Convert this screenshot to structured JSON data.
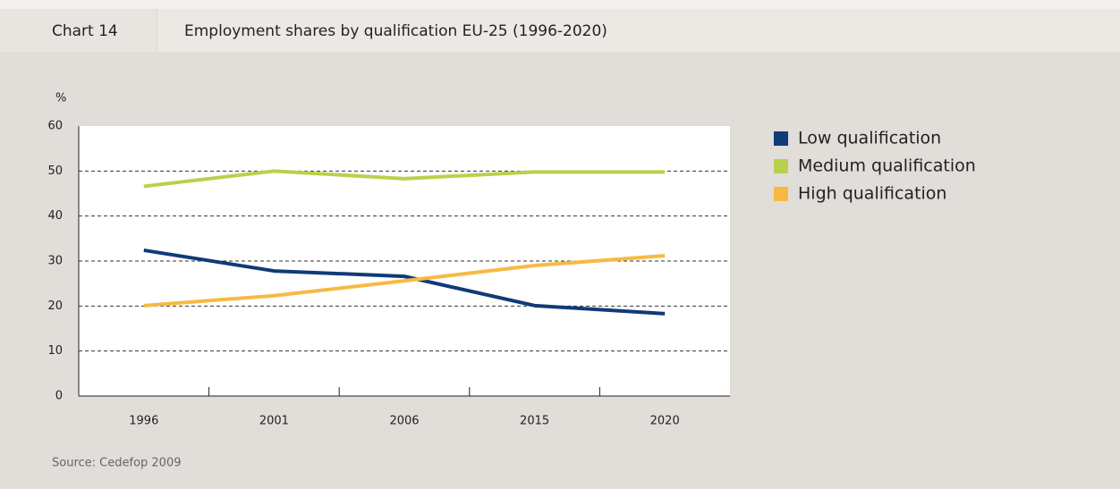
{
  "chart_data": {
    "type": "line",
    "label": "Chart 14",
    "title": "Employment shares by qualification EU-25 (1996-2020)",
    "ylabel": "%",
    "source": "Source: Cedefop 2009",
    "categories": [
      "1996",
      "2001",
      "2006",
      "2015",
      "2020"
    ],
    "series": [
      {
        "name": "Low qualification",
        "color": "#103a78",
        "values": [
          32.4,
          27.8,
          26.6,
          20.1,
          18.3
        ]
      },
      {
        "name": "Medium qualification",
        "color": "#b9d14b",
        "values": [
          46.6,
          50,
          48.3,
          49.8,
          49.8
        ]
      },
      {
        "name": "High qualification",
        "color": "#f6ba43",
        "values": [
          20.1,
          22.3,
          25.6,
          29,
          31.2
        ]
      }
    ],
    "ylim": [
      0,
      60
    ],
    "yticks": [
      0,
      10,
      20,
      30,
      40,
      50,
      60
    ],
    "grid": true,
    "legend": "right"
  }
}
